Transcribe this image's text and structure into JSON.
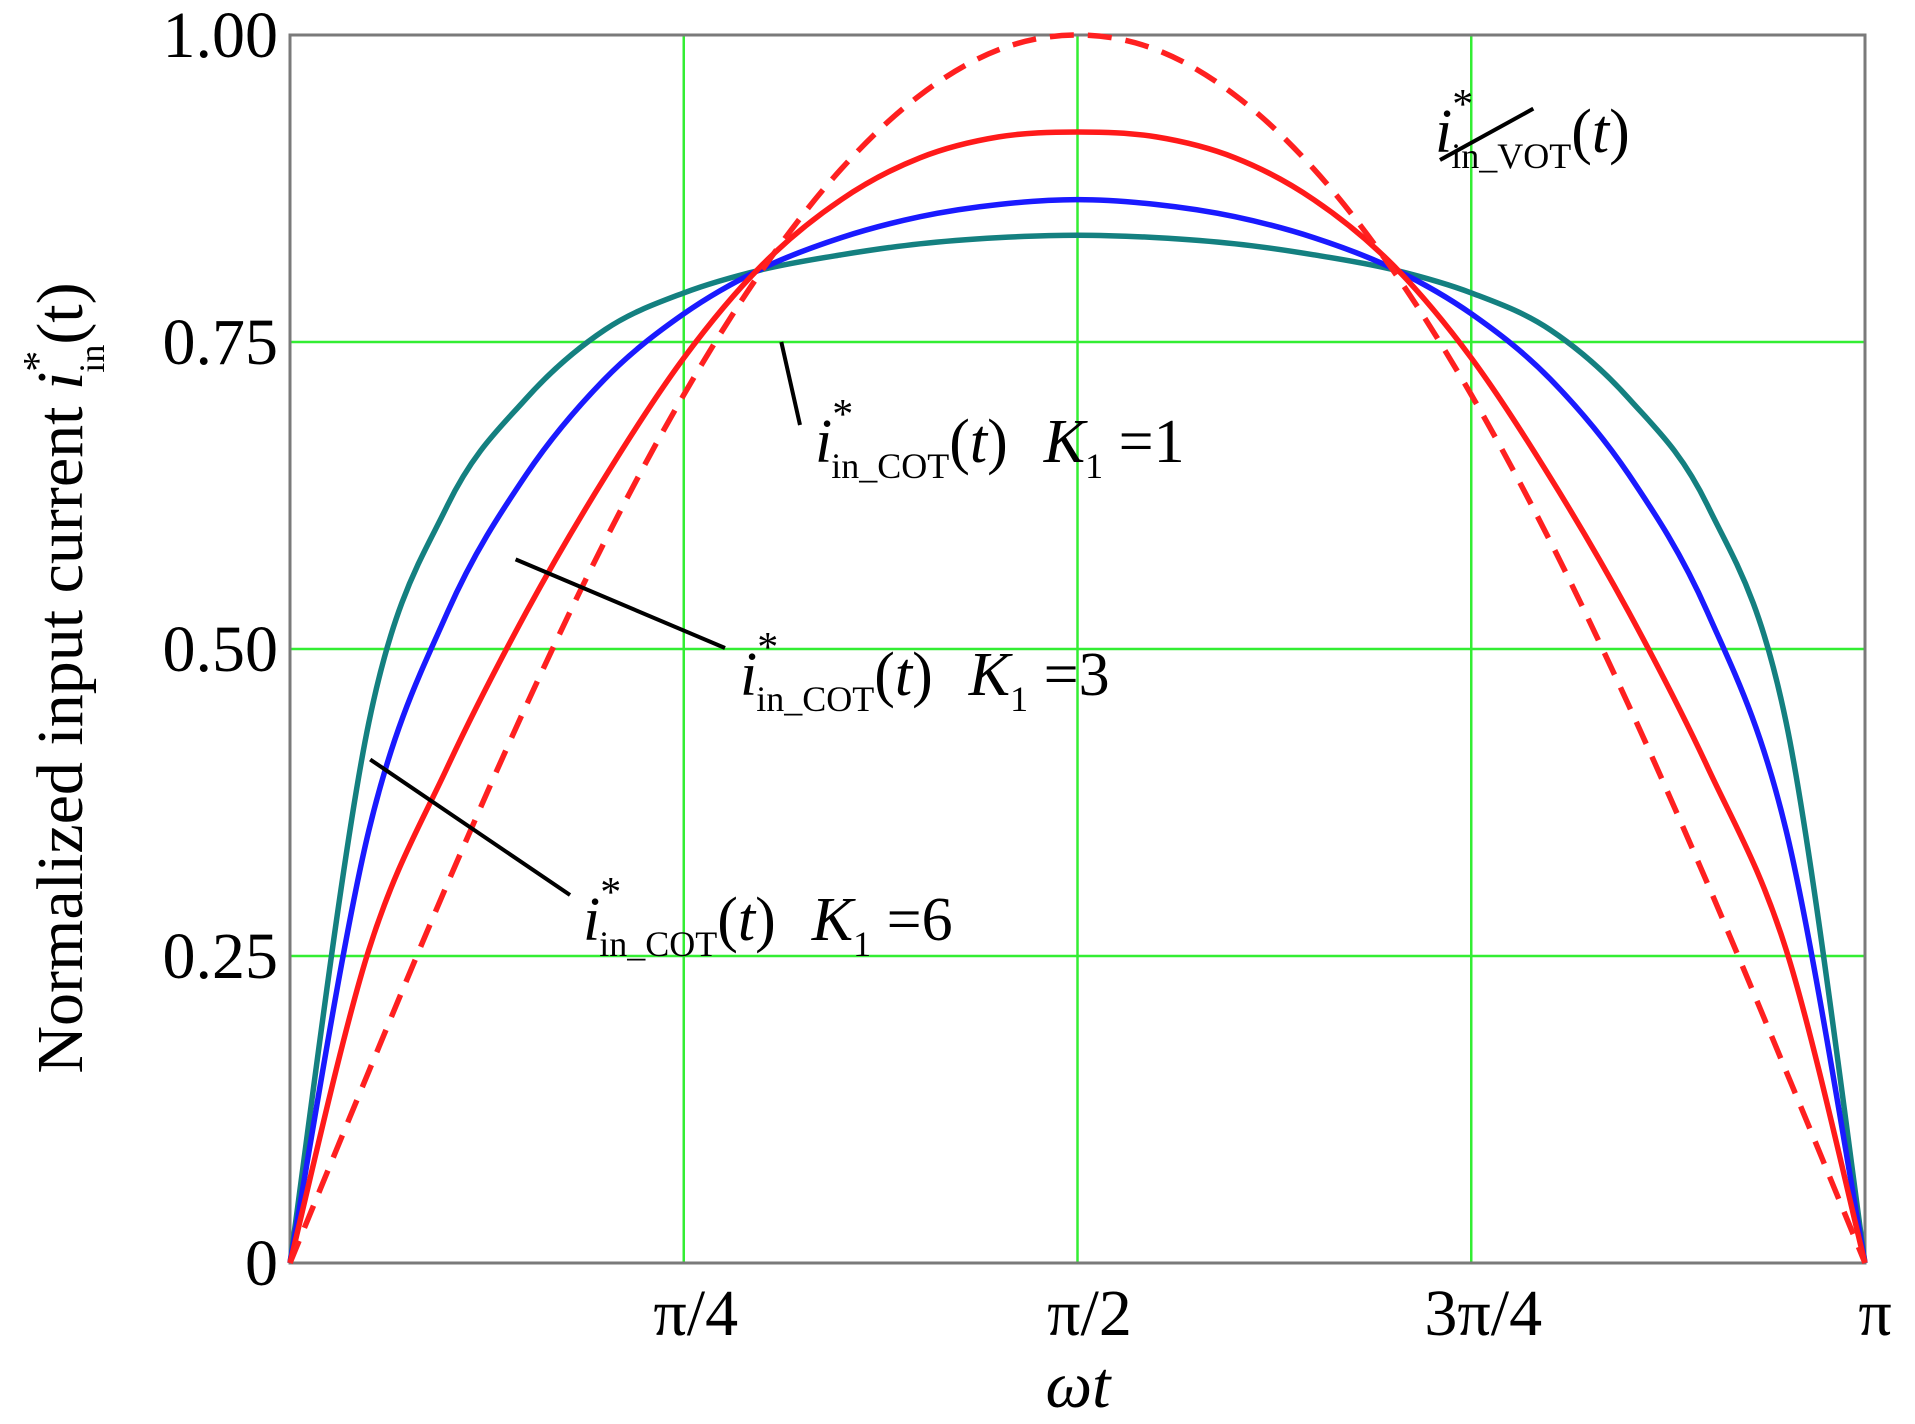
{
  "chart_data": {
    "type": "line",
    "xlabel": "ωt",
    "ylabel": {
      "text": "Normalized input current ",
      "symbol": "i",
      "superscript": "*",
      "subscript": "in",
      "arg": "(t)"
    },
    "xlim": [
      0,
      3.14159265
    ],
    "ylim": [
      0,
      1.0
    ],
    "grid": true,
    "colors": {
      "grid": "#33ee33",
      "frame": "#7a7a7a",
      "vot": "#ff2020",
      "k1": "#ff1a1a",
      "k3": "#1a1aff",
      "k6": "#148080",
      "leader": "#000000"
    },
    "x_ticks": [
      {
        "value": 0.78539816,
        "label": "π/4"
      },
      {
        "value": 1.57079633,
        "label": "π/2"
      },
      {
        "value": 2.35619449,
        "label": "3π/4"
      },
      {
        "value": 3.14159265,
        "label": "π"
      }
    ],
    "y_ticks": [
      {
        "value": 0,
        "label": "0"
      },
      {
        "value": 0.25,
        "label": "0.25"
      },
      {
        "value": 0.5,
        "label": "0.50"
      },
      {
        "value": 0.75,
        "label": "0.75"
      },
      {
        "value": 1.0,
        "label": "1.00"
      }
    ],
    "series": [
      {
        "id": "vot",
        "label": {
          "symbol": "i",
          "sup": "*",
          "sub": "in_VOT",
          "arg": "(t)",
          "k": ""
        },
        "style": "dashed",
        "x": [
          0,
          0.1571,
          0.3142,
          0.4712,
          0.6283,
          0.7854,
          0.9425,
          1.0996,
          1.2566,
          1.4137,
          1.5708,
          1.7279,
          1.885,
          2.042,
          2.1991,
          2.3562,
          2.5133,
          2.6704,
          2.8274,
          2.9845,
          3.1416
        ],
        "y": [
          0,
          0.156,
          0.309,
          0.454,
          0.588,
          0.707,
          0.809,
          0.891,
          0.951,
          0.988,
          1.0,
          0.988,
          0.951,
          0.891,
          0.809,
          0.707,
          0.588,
          0.454,
          0.309,
          0.156,
          0
        ]
      },
      {
        "id": "cot-k1",
        "label": {
          "symbol": "i",
          "sup": "*",
          "sub": "in_COT",
          "arg": "(t)",
          "k": "K",
          "k_sub": "1",
          "k_val": " =1"
        },
        "style": "solid",
        "x": [
          0,
          0.1571,
          0.3142,
          0.4712,
          0.6283,
          0.7854,
          0.9425,
          1.0996,
          1.2566,
          1.4137,
          1.5708,
          1.7279,
          1.885,
          2.042,
          2.1991,
          2.3562,
          2.5133,
          2.6704,
          2.8274,
          2.9845,
          3.1416
        ],
        "y": [
          0,
          0.255,
          0.404,
          0.53,
          0.64,
          0.737,
          0.813,
          0.866,
          0.9,
          0.917,
          0.921,
          0.917,
          0.9,
          0.866,
          0.813,
          0.737,
          0.64,
          0.53,
          0.404,
          0.255,
          0
        ]
      },
      {
        "id": "cot-k3",
        "label": {
          "symbol": "i",
          "sup": "*",
          "sub": "in_COT",
          "arg": "(t)",
          "k": "K",
          "k_sub": "1",
          "k_val": " =3"
        },
        "style": "solid",
        "x": [
          0,
          0.1571,
          0.3142,
          0.4712,
          0.6283,
          0.7854,
          0.9425,
          1.0996,
          1.2566,
          1.4137,
          1.5708,
          1.7279,
          1.885,
          2.042,
          2.1991,
          2.3562,
          2.5133,
          2.6704,
          2.8274,
          2.9845,
          3.1416
        ],
        "y": [
          0,
          0.352,
          0.53,
          0.642,
          0.72,
          0.773,
          0.81,
          0.835,
          0.852,
          0.862,
          0.866,
          0.862,
          0.852,
          0.835,
          0.81,
          0.773,
          0.72,
          0.642,
          0.53,
          0.352,
          0
        ]
      },
      {
        "id": "cot-k6",
        "label": {
          "symbol": "i",
          "sup": "*",
          "sub": "in_COT",
          "arg": "(t)",
          "k": "K",
          "k_sub": "1",
          "k_val": " =6"
        },
        "style": "solid",
        "x": [
          0,
          0.1571,
          0.3142,
          0.4712,
          0.6283,
          0.7854,
          0.9425,
          1.0996,
          1.2566,
          1.4137,
          1.5708,
          1.7279,
          1.885,
          2.042,
          2.1991,
          2.3562,
          2.5133,
          2.6704,
          2.8274,
          2.9845,
          3.1416
        ],
        "y": [
          0,
          0.44,
          0.617,
          0.704,
          0.76,
          0.79,
          0.809,
          0.821,
          0.83,
          0.835,
          0.837,
          0.835,
          0.83,
          0.821,
          0.809,
          0.79,
          0.76,
          0.704,
          0.617,
          0.44,
          0
        ]
      }
    ],
    "annotations": [
      {
        "series": "vot",
        "x": 2.48,
        "y": 0.94
      },
      {
        "series": "cot-k1",
        "x": 0.98,
        "y": 0.75
      },
      {
        "series": "cot-k3",
        "x": 0.45,
        "y": 0.573
      },
      {
        "series": "cot-k6",
        "x": 0.16,
        "y": 0.41
      }
    ]
  }
}
